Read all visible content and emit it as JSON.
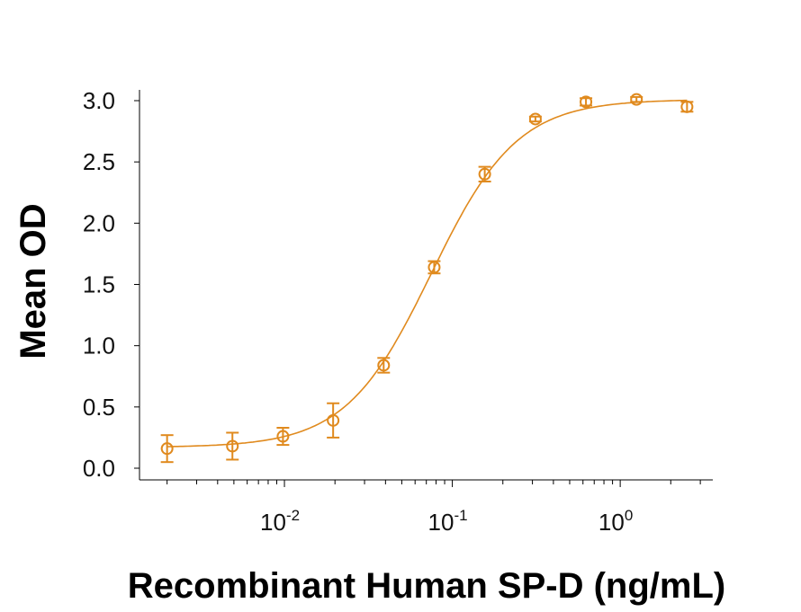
{
  "chart_data": {
    "type": "scatter",
    "title": "",
    "xlabel": "Recombinant Human SP-D (ng/mL)",
    "ylabel": "Mean OD",
    "xscale": "log",
    "xlim": [
      0.00137,
      3.56
    ],
    "ylim": [
      0,
      3.0
    ],
    "yticks": [
      "0.0",
      "0.5",
      "1.0",
      "1.5",
      "2.0",
      "2.5",
      "3.0"
    ],
    "xticks": [
      {
        "base": "10",
        "exp": "-2"
      },
      {
        "base": "10",
        "exp": "-1"
      },
      {
        "base": "10",
        "exp": "0"
      }
    ],
    "grid": false,
    "color": "#e08a1e",
    "series": [
      {
        "x": [
          0.002,
          0.0049,
          0.0098,
          0.0195,
          0.039,
          0.078,
          0.156,
          0.3125,
          0.625,
          1.25,
          2.5
        ],
        "y": [
          0.16,
          0.18,
          0.26,
          0.39,
          0.84,
          1.64,
          2.4,
          2.85,
          2.99,
          3.01,
          2.95
        ],
        "error": [
          0.11,
          0.11,
          0.07,
          0.14,
          0.06,
          0.05,
          0.06,
          0.02,
          0.03,
          0.02,
          0.04
        ]
      }
    ],
    "fit": "four-parameter logistic curve"
  }
}
